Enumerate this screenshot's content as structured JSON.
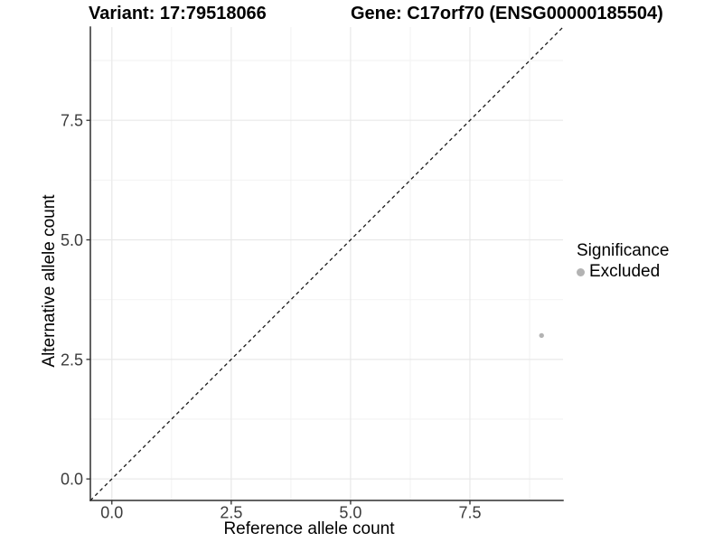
{
  "chart_data": {
    "type": "scatter",
    "titles": [
      "Variant: 17:79518066",
      "Gene: C17orf70 (ENSG00000185504)"
    ],
    "xlabel": "Reference allele count",
    "ylabel": "Alternative allele count",
    "xlim": [
      -0.45,
      9.45
    ],
    "ylim": [
      -0.45,
      9.45
    ],
    "x_ticks": {
      "values": [
        0,
        2.5,
        5,
        7.5
      ],
      "labels": [
        "0.0",
        "2.5",
        "5.0",
        "7.5"
      ]
    },
    "y_ticks": {
      "values": [
        0,
        2.5,
        5,
        7.5
      ],
      "labels": [
        "0.0",
        "2.5",
        "5.0",
        "7.5"
      ]
    },
    "x_minor_ticks": [
      1.25,
      3.75,
      6.25,
      8.75
    ],
    "y_minor_ticks": [
      1.25,
      3.75,
      6.25,
      8.75
    ],
    "grid": {
      "major": true,
      "minor": true
    },
    "identity_line": {
      "slope": 1,
      "intercept": 0,
      "style": "dashed"
    },
    "points": [
      {
        "x": 9,
        "y": 3,
        "series": "Excluded"
      }
    ],
    "legend": {
      "title": "Significance",
      "position": "right",
      "items": [
        {
          "label": "Excluded",
          "color": "#b3b3b3"
        }
      ]
    },
    "colors": {
      "background": "#ffffff",
      "grid_major": "#e8e8e8",
      "grid_minor": "#f2f2f2",
      "axis_line": "#2e2e2e",
      "tick_text": "#3c3c3c",
      "identity_line": "#1a1a1a"
    }
  }
}
